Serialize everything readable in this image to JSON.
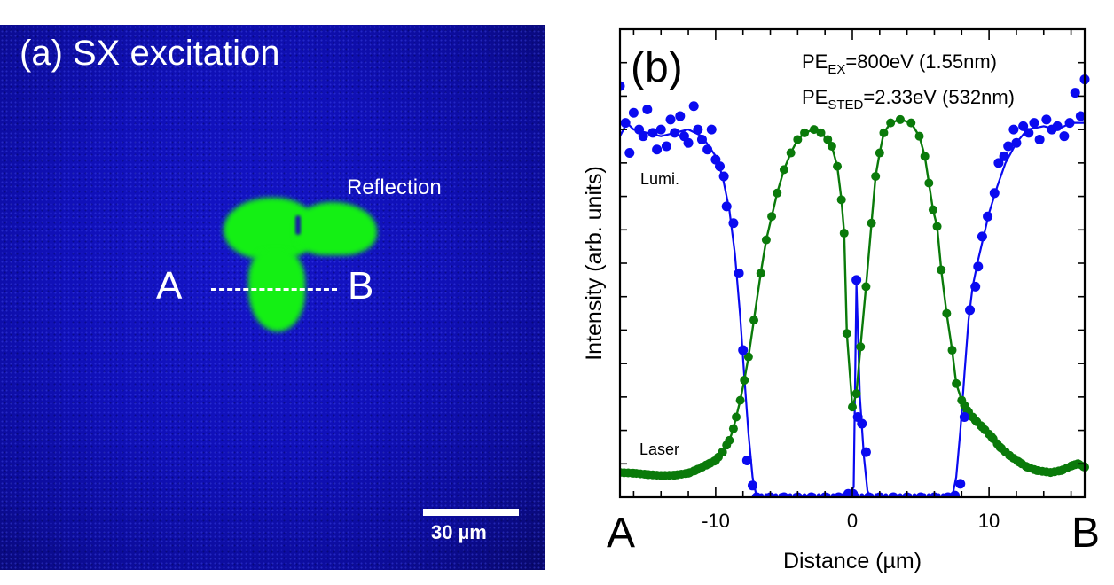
{
  "panel_a": {
    "title": "(a) SX excitation",
    "reflection_label": "Reflection",
    "point_a": "A",
    "point_b": "B",
    "scale_bar_label": "30 µm",
    "colors": {
      "background": "#1010b8",
      "emission": "#14f014"
    }
  },
  "chart_data": {
    "type": "line",
    "panel_label": "(b)",
    "title": "",
    "xlabel": "Distance (µm)",
    "ylabel": "Intensity (arb. units)",
    "xlim": [
      -17,
      17
    ],
    "ylim": [
      0,
      14
    ],
    "x_ticks": [
      -10,
      0,
      10
    ],
    "x_tick_labels": [
      "-10",
      "0",
      "10"
    ],
    "x_end_labels": {
      "left": "A",
      "right": "B"
    },
    "y_tick_labels": [],
    "grid": false,
    "annotations": [
      {
        "main": "PE",
        "sub": "EX",
        "rest": "=800eV (1.55nm)"
      },
      {
        "main": "PE",
        "sub": "STED",
        "rest": "=2.33eV (532nm)"
      }
    ],
    "series": [
      {
        "name": "Lumi.",
        "color": "#0a0af0",
        "points_x": [
          -17,
          -16.6,
          -16.3,
          -16,
          -15.6,
          -15.3,
          -15,
          -14.6,
          -14.3,
          -14,
          -13.6,
          -13.3,
          -13,
          -12.6,
          -12.3,
          -12,
          -11.6,
          -11.3,
          -11,
          -10.6,
          -10.3,
          -10,
          -9.7,
          -9.4,
          -9.2,
          -8.7,
          -8.3,
          -8.0,
          -7.7,
          -7.3,
          -7.0,
          -6,
          -5,
          -4,
          -3,
          -2,
          -1,
          -0.3,
          0.05,
          0.3,
          0.4,
          0.7,
          1.0,
          1.2,
          2,
          3,
          4,
          5,
          6,
          7,
          7.5,
          7.9,
          8.2,
          8.6,
          9.0,
          9.2,
          9.5,
          9.9,
          10.4,
          10.7,
          11.1,
          11.4,
          11.8,
          12.0,
          12.5,
          12.9,
          13.3,
          13.7,
          14.2,
          14.6,
          15.0,
          15.5,
          15.9,
          16.3,
          16.7,
          17
        ],
        "points_y": [
          12.3,
          11.2,
          10.3,
          11.5,
          11.0,
          10.8,
          11.6,
          10.9,
          10.4,
          11.0,
          10.5,
          11.3,
          10.9,
          11.4,
          10.8,
          10.6,
          11.7,
          11.0,
          10.7,
          10.4,
          11.0,
          10.1,
          9.9,
          9.6,
          8.7,
          8.2,
          6.7,
          4.4,
          1.1,
          0.35,
          0,
          0,
          0,
          0,
          0,
          0,
          0,
          0.1,
          0.1,
          6.5,
          2.4,
          2.2,
          1.35,
          0,
          0,
          0,
          0,
          0,
          0,
          0,
          0.05,
          0.4,
          2.4,
          5.6,
          6.3,
          6.9,
          7.8,
          8.4,
          9.1,
          10.0,
          10.2,
          10.5,
          11.0,
          10.6,
          11.1,
          10.9,
          11.2,
          10.7,
          11.3,
          11.0,
          11.1,
          10.8,
          11.2,
          12.1,
          11.4,
          12.5
        ],
        "fit_x": [
          -17,
          -16.5,
          -16,
          -15,
          -14,
          -13,
          -12,
          -11,
          -10.5,
          -10,
          -9.5,
          -9,
          -8.6,
          -8.2,
          -7.9,
          -7.6,
          -7.3,
          -7.0,
          -0.4,
          0.1,
          0.3,
          0.55,
          0.85,
          1.1,
          1.3,
          7.3,
          7.6,
          7.9,
          8.2,
          8.5,
          8.8,
          9.2,
          9.6,
          10.0,
          10.6,
          11.2,
          12.0,
          12.8,
          14,
          15,
          16,
          17
        ],
        "fit_y": [
          10.8,
          11.2,
          11.0,
          10.9,
          10.8,
          10.9,
          11.0,
          10.8,
          10.5,
          10.2,
          9.6,
          8.6,
          7.3,
          5.4,
          3.6,
          1.9,
          0.6,
          0,
          0,
          0.3,
          6.4,
          3.0,
          1.2,
          0.2,
          0,
          0,
          0.6,
          2.0,
          3.7,
          5.3,
          6.3,
          7.1,
          7.8,
          8.5,
          9.3,
          10.0,
          10.6,
          11.0,
          11.1,
          11.0,
          11.2,
          11.2
        ]
      },
      {
        "name": "Laser",
        "color": "#0a7a0a",
        "x": [
          -17,
          -16,
          -15,
          -14,
          -13,
          -12,
          -11.5,
          -11,
          -10.5,
          -10,
          -9.5,
          -9,
          -8.7,
          -8.5,
          -8.2,
          -7.9,
          -7.6,
          -7.2,
          -6.7,
          -6.3,
          -5.9,
          -5.5,
          -5.0,
          -4.5,
          -4.0,
          -3.5,
          -2.8,
          -2.3,
          -1.8,
          -1.5,
          -1.1,
          -0.8,
          -0.6,
          -0.4,
          0,
          0.3,
          0.6,
          1.0,
          1.4,
          1.7,
          2.0,
          2.3,
          2.8,
          3.5,
          4.3,
          4.9,
          5.3,
          5.6,
          5.9,
          6.2,
          6.5,
          6.9,
          7.3,
          7.6,
          8.0,
          8.4,
          9.0,
          9.5,
          10.2,
          10.8,
          11.5,
          12.2,
          12.8,
          13.5,
          14.5,
          15.3,
          16.1,
          16.5,
          17
        ],
        "y": [
          0.74,
          0.72,
          0.68,
          0.65,
          0.66,
          0.72,
          0.8,
          0.9,
          1.0,
          1.1,
          1.35,
          1.7,
          2.05,
          2.4,
          2.9,
          3.5,
          4.2,
          5.3,
          6.7,
          7.7,
          8.4,
          9.1,
          9.8,
          10.3,
          10.7,
          10.9,
          11.0,
          10.9,
          10.7,
          10.5,
          9.9,
          8.9,
          7.9,
          4.9,
          2.7,
          3.1,
          4.5,
          6.3,
          8.2,
          9.6,
          10.3,
          10.9,
          11.2,
          11.3,
          11.2,
          10.8,
          10.2,
          9.4,
          8.6,
          8.1,
          6.8,
          5.5,
          4.4,
          3.4,
          2.9,
          2.6,
          2.3,
          2.1,
          1.8,
          1.5,
          1.25,
          1.05,
          0.9,
          0.8,
          0.74,
          0.8,
          0.95,
          1.0,
          0.9
        ]
      }
    ],
    "legend": {
      "placement": "inline-labels",
      "entries": [
        "Lumi.",
        "Laser"
      ]
    }
  }
}
